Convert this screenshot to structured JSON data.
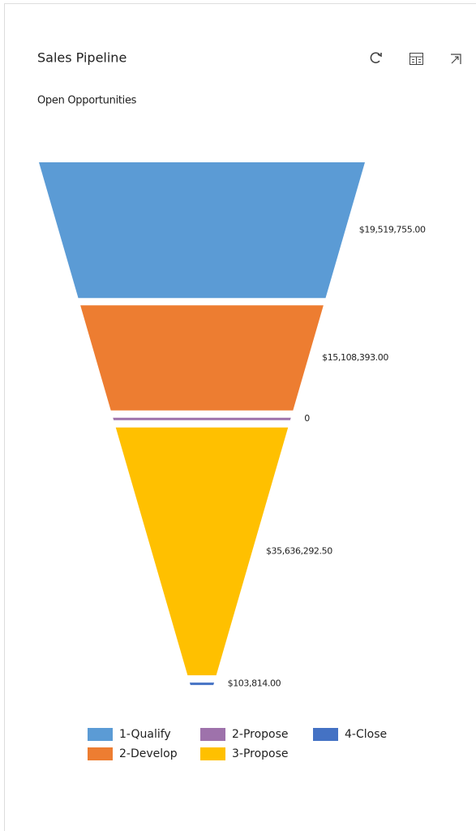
{
  "chart_data": {
    "type": "funnel",
    "title": "Sales Pipeline",
    "subtitle": "Open Opportunities",
    "categories": [
      "1-Qualify",
      "2-Develop",
      "2-Propose",
      "3-Propose",
      "4-Close"
    ],
    "values": [
      19519755,
      15108393,
      0,
      35636292.5,
      103814
    ],
    "value_labels": [
      "$19,519,755.00",
      "$15,108,393.00",
      "0",
      "$35,636,292.50",
      "$103,814.00"
    ],
    "colors": [
      "#5b9bd5",
      "#ed7d31",
      "#9e72ab",
      "#ffc000",
      "#4472c4"
    ],
    "legend": "bottom"
  }
}
